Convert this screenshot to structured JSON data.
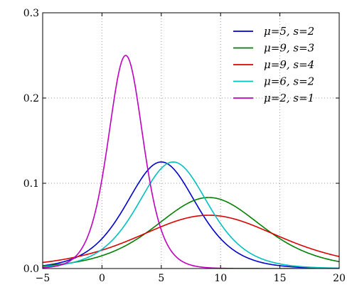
{
  "chart_data": {
    "type": "line",
    "title": "",
    "xlabel": "",
    "ylabel": "",
    "xlim": [
      -5,
      20
    ],
    "ylim": [
      0,
      0.3
    ],
    "x_ticks": [
      -5,
      0,
      5,
      10,
      15,
      20
    ],
    "x_tick_labels": [
      "−5",
      "0",
      "5",
      "10",
      "15",
      "20"
    ],
    "y_ticks": [
      0,
      0.1,
      0.2,
      0.3
    ],
    "y_tick_labels": [
      "0.0",
      "0.1",
      "0.2",
      "0.3"
    ],
    "grid": true,
    "legend_position": "top-right",
    "series": [
      {
        "name": "μ=5, s=2",
        "mu": 5,
        "s": 2,
        "color": "#0000cc",
        "x": [
          -5,
          -2,
          0,
          2,
          3,
          4,
          5,
          6,
          7,
          8,
          10,
          12,
          15,
          20
        ],
        "values": [
          0.0033,
          0.0146,
          0.0352,
          0.0745,
          0.0983,
          0.1175,
          0.125,
          0.1175,
          0.0983,
          0.0745,
          0.0352,
          0.0146,
          0.0033,
          0.0003
        ]
      },
      {
        "name": "μ=9, s=3",
        "mu": 9,
        "s": 3,
        "color": "#008000",
        "x": [
          -5,
          0,
          3,
          5,
          7,
          9,
          11,
          13,
          15,
          18,
          20
        ],
        "values": [
          0.0031,
          0.0142,
          0.035,
          0.0543,
          0.0745,
          0.0833,
          0.0745,
          0.0543,
          0.035,
          0.0142,
          0.0081
        ]
      },
      {
        "name": "μ=9, s=4",
        "mu": 9,
        "s": 4,
        "color": "#dd0000",
        "x": [
          -5,
          0,
          3,
          5,
          7,
          9,
          11,
          13,
          15,
          18,
          20
        ],
        "values": [
          0.007,
          0.0204,
          0.0368,
          0.0491,
          0.0587,
          0.0625,
          0.0587,
          0.0491,
          0.0368,
          0.0204,
          0.0144
        ]
      },
      {
        "name": "μ=6, s=2",
        "mu": 6,
        "s": 2,
        "color": "#00bfbf",
        "x": [
          -5,
          -2,
          0,
          2,
          4,
          5,
          6,
          7,
          8,
          10,
          12,
          15,
          20
        ],
        "values": [
          0.002,
          0.009,
          0.0226,
          0.0524,
          0.0983,
          0.1175,
          0.125,
          0.1175,
          0.0983,
          0.0524,
          0.0226,
          0.0055,
          0.0005
        ]
      },
      {
        "name": "μ=2, s=1",
        "mu": 2,
        "s": 1,
        "color": "#bf00bf",
        "x": [
          -2,
          -1,
          0,
          1,
          1.5,
          2,
          2.5,
          3,
          4,
          5,
          6,
          8
        ],
        "values": [
          0.0177,
          0.0452,
          0.105,
          0.1966,
          0.235,
          0.25,
          0.235,
          0.1966,
          0.105,
          0.0452,
          0.0177,
          0.0025
        ]
      }
    ]
  }
}
